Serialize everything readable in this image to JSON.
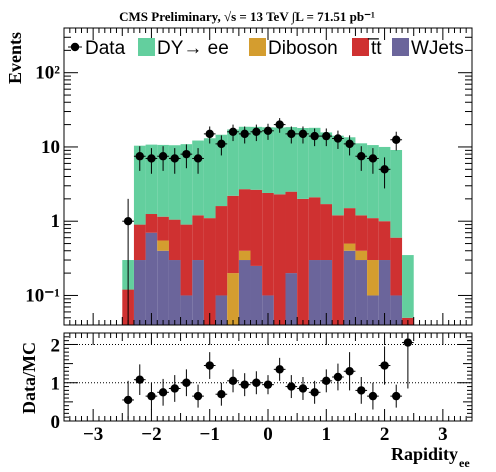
{
  "chart_data": [
    {
      "type": "bar",
      "stacked": true,
      "title": "CMS Preliminary, √s = 13 TeV ∫L = 71.51 pb⁻¹",
      "ylabel": "Events",
      "ylog": true,
      "ylim": [
        0.04,
        400
      ],
      "xlim": [
        -3.5,
        3.5
      ],
      "yticks": [
        0.1,
        1,
        10,
        100
      ],
      "ytick_labels": [
        "10⁻¹",
        "1",
        "10",
        "10²"
      ],
      "legend_position": "top",
      "bin_width": 0.2,
      "bin_low_edges": [
        -2.5,
        -2.3,
        -2.1,
        -1.9,
        -1.7,
        -1.5,
        -1.3,
        -1.1,
        -0.9,
        -0.7,
        -0.5,
        -0.3,
        -0.1,
        0.1,
        0.3,
        0.5,
        0.7,
        0.9,
        1.1,
        1.3,
        1.5,
        1.7,
        1.9,
        2.1,
        2.3
      ],
      "series": [
        {
          "name": "WJets",
          "color": "#6b659b",
          "values": [
            0,
            0.3,
            0.7,
            0.4,
            0.3,
            0.1,
            0.3,
            0,
            0.1,
            0,
            0.3,
            0.25,
            0.1,
            0,
            0.2,
            0,
            0.3,
            0.3,
            0,
            0.4,
            0.3,
            0.1,
            0.3,
            0.1,
            0
          ]
        },
        {
          "name": "Diboson",
          "color": "#d49d2f",
          "values": [
            0,
            0,
            0,
            0.15,
            0,
            0,
            0,
            0,
            0,
            0.2,
            0.1,
            0,
            0,
            0,
            0,
            0,
            0,
            0,
            0,
            0.1,
            0.1,
            0.2,
            0,
            0,
            0
          ]
        },
        {
          "name": "t̅t",
          "color": "#cf3131",
          "values": [
            0.12,
            0.6,
            0.55,
            0.6,
            0.75,
            0.8,
            0.9,
            1.1,
            1.5,
            2.0,
            2.3,
            2.4,
            2.3,
            2.3,
            2.3,
            2.0,
            1.8,
            1.4,
            1.2,
            1.0,
            0.8,
            0.8,
            0.7,
            0.5,
            0.05
          ]
        },
        {
          "name": "DY→ ee",
          "color": "#63cf9e",
          "values": [
            0.18,
            9.5,
            9.5,
            9.5,
            9.5,
            10.0,
            11.0,
            12.0,
            13.0,
            15.0,
            16.0,
            16.0,
            16.0,
            16.0,
            16.0,
            16.0,
            16.0,
            14.0,
            13.0,
            12.0,
            10.0,
            9.5,
            9.0,
            8.5,
            0.3
          ]
        }
      ],
      "data_points": {
        "name": "Data",
        "x": [
          -2.4,
          -2.2,
          -2.0,
          -1.8,
          -1.6,
          -1.4,
          -1.2,
          -1.0,
          -0.8,
          -0.6,
          -0.4,
          -0.2,
          0.0,
          0.2,
          0.4,
          0.6,
          0.8,
          1.0,
          1.2,
          1.4,
          1.6,
          1.8,
          2.0,
          2.2,
          2.4
        ],
        "y": [
          1.0,
          7.5,
          7.0,
          7.5,
          7.0,
          8.0,
          7.0,
          15.0,
          11.0,
          16.0,
          15.0,
          16.0,
          16.5,
          20.0,
          15.0,
          15.0,
          14.0,
          14.0,
          13.0,
          11.0,
          7.5,
          7.0,
          5.0,
          12.5,
          0.0
        ]
      }
    },
    {
      "type": "scatter",
      "ylabel": "Data/MC",
      "xlabel": "Rapidity",
      "xlabel_subscript": "ee",
      "xlim": [
        -3.5,
        3.5
      ],
      "ylim": [
        0,
        2.3
      ],
      "xticks": [
        -3,
        -2,
        -1,
        0,
        1,
        2,
        3
      ],
      "xtick_labels": [
        "−3",
        "−2",
        "−1",
        "0",
        "1",
        "2",
        "3"
      ],
      "yticks": [
        0,
        1,
        2
      ],
      "ytick_labels": [
        "0",
        "1",
        "2"
      ],
      "reference_lines": [
        1,
        2
      ],
      "x": [
        -2.4,
        -2.2,
        -2.0,
        -1.8,
        -1.6,
        -1.4,
        -1.2,
        -1.0,
        -0.8,
        -0.6,
        -0.4,
        -0.2,
        0.0,
        0.2,
        0.4,
        0.6,
        0.8,
        1.0,
        1.2,
        1.4,
        1.6,
        1.8,
        2.0,
        2.2,
        2.4
      ],
      "y": [
        0.55,
        1.08,
        0.65,
        0.75,
        0.85,
        1.0,
        0.65,
        1.45,
        0.7,
        1.05,
        0.95,
        1.0,
        0.95,
        1.35,
        0.9,
        0.85,
        0.75,
        1.05,
        1.15,
        1.3,
        0.8,
        0.65,
        1.45,
        0.65,
        2.05
      ],
      "y_err": [
        0.5,
        0.4,
        0.35,
        0.35,
        0.35,
        0.35,
        0.3,
        0.35,
        0.3,
        0.3,
        0.3,
        0.3,
        0.25,
        0.3,
        0.3,
        0.3,
        0.3,
        0.3,
        0.35,
        0.5,
        0.35,
        0.35,
        0.5,
        0.3,
        1.2
      ]
    }
  ]
}
